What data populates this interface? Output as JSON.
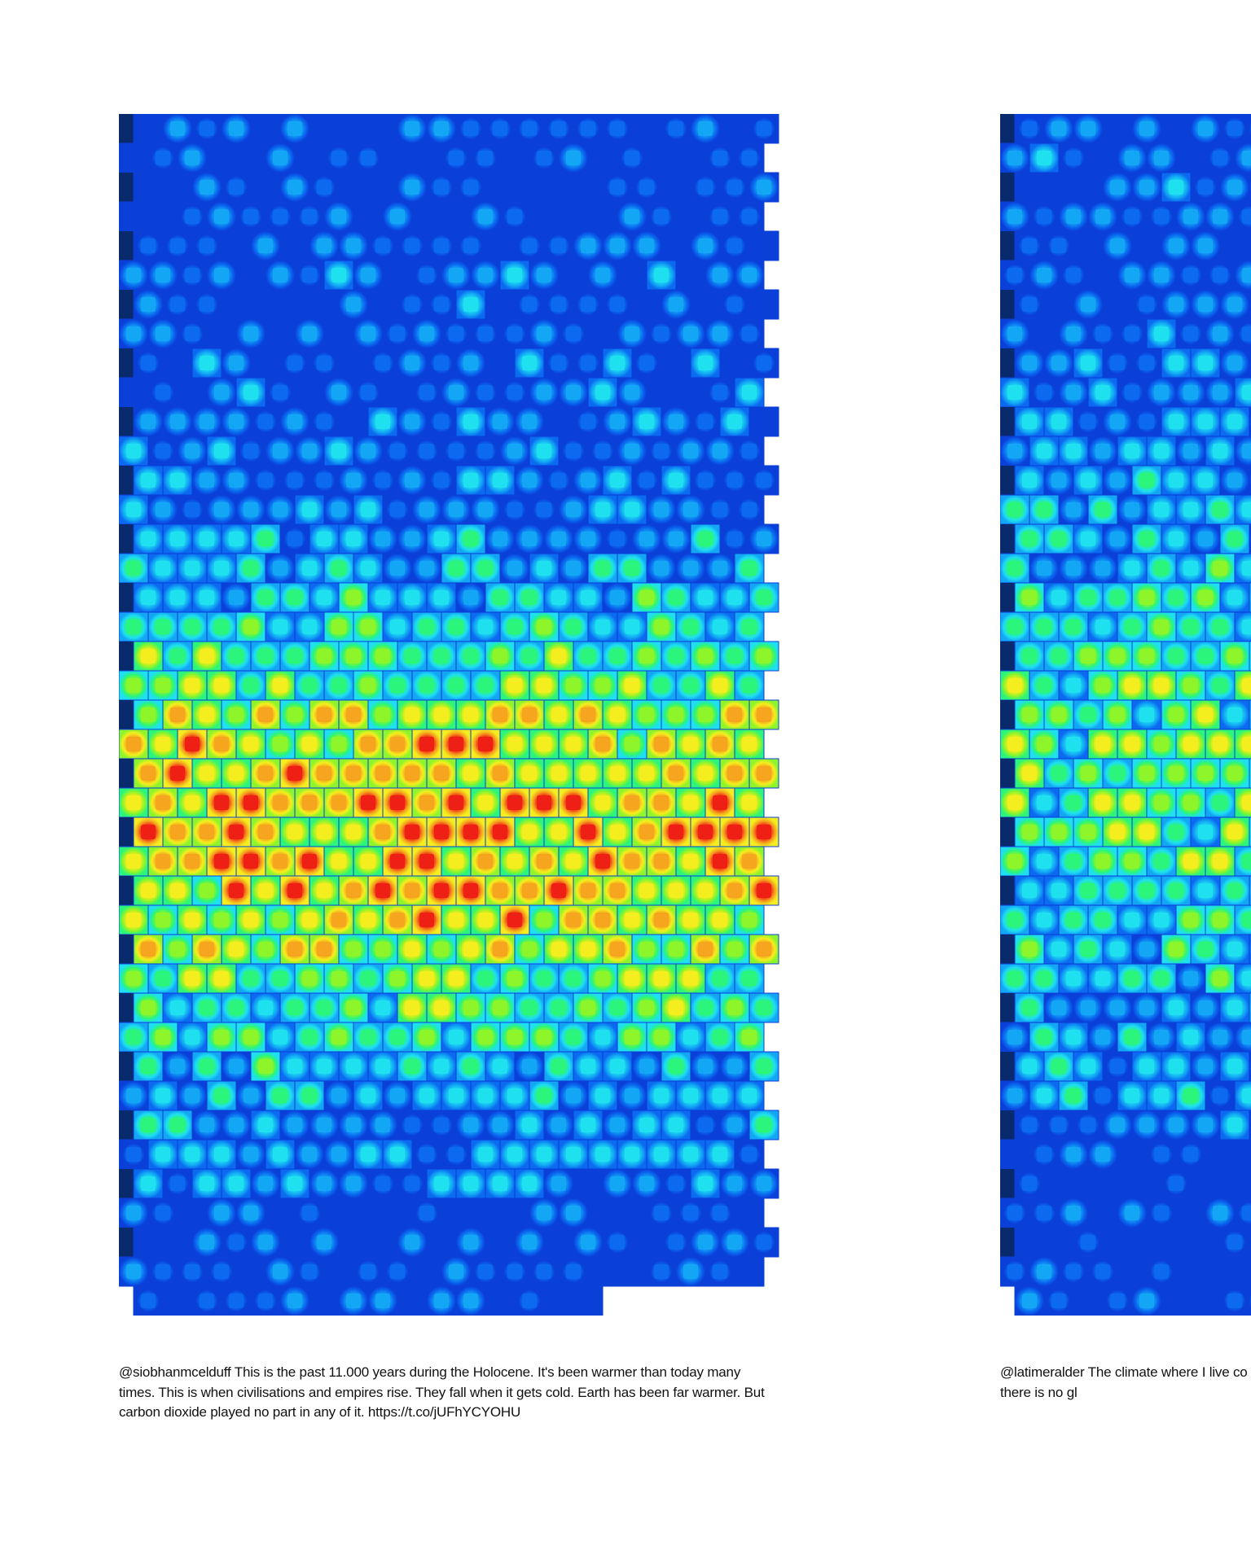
{
  "panels": [
    {
      "caption": "@siobhanmcelduff This is the past 11.000 years during the Holocene. It's been warmer than today many times. This is when civilisations and empires rise. They fall when it gets cold. Earth has been far warmer. But carbon dioxide played no part in any of it. https://t.co/jUFhYCYOHU",
      "weave": {
        "rows": 41,
        "cells_per_row": 22,
        "last_row_cells": 16,
        "heat_profile": "holocene"
      }
    },
    {
      "caption": "@latimeralder The climate where I live co winters are damp and grey. In times gon thread getting too dry.  But there is no gl",
      "weave": {
        "rows": 41,
        "cells_per_row": 22,
        "last_row_cells": 22,
        "heat_profile": "cooler"
      }
    }
  ],
  "colors": {
    "background": "#ffffff",
    "edge_dark": "#0a2a6e",
    "palette": [
      "#0a3fd8",
      "#0b6af0",
      "#12a6f5",
      "#1ee0ef",
      "#2bf57a",
      "#8ef52b",
      "#f5ee1e",
      "#f5a51e",
      "#ee2015"
    ]
  }
}
